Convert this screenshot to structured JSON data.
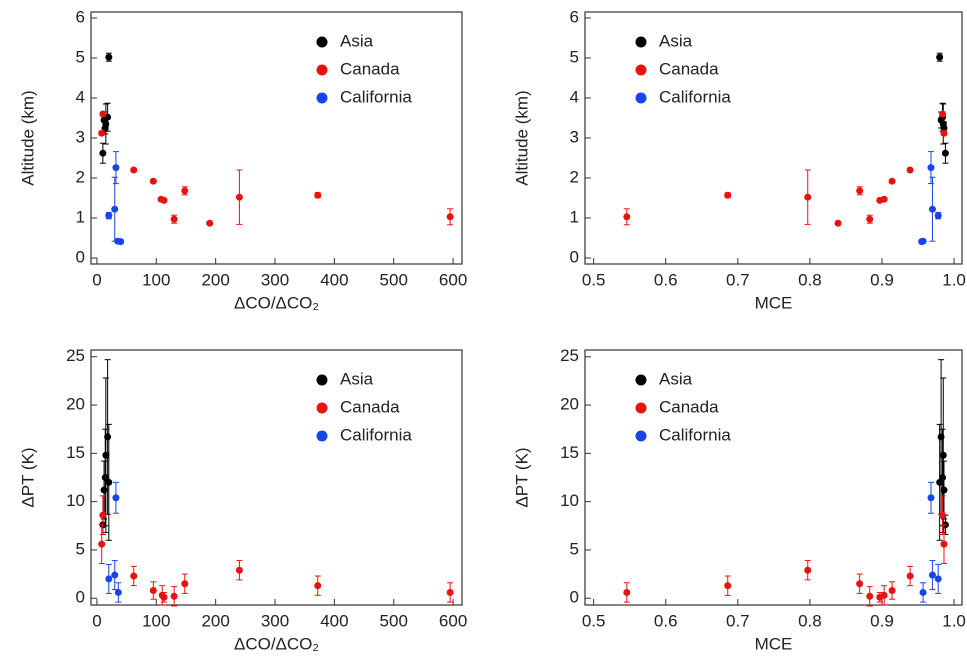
{
  "chart_data": [
    {
      "type": "scatter",
      "xlabel": "ΔCO/ΔCO₂",
      "ylabel": "Altitude (km)",
      "legend": "upper right",
      "xlim": [
        -10,
        615
      ],
      "ylim": [
        -0.15,
        6.15
      ],
      "xticks": [
        0,
        100,
        200,
        300,
        400,
        500,
        600
      ],
      "yticks": [
        0,
        1,
        2,
        3,
        4,
        5,
        6
      ],
      "series": [
        {
          "name": "Asia",
          "color": "#000000",
          "x": [
            20,
            10,
            12,
            15,
            18,
            14
          ],
          "values": [
            5.02,
            2.62,
            3.45,
            3.35,
            3.52,
            3.25
          ],
          "errors": [
            0.1,
            0.25,
            0.2,
            0.5,
            0.35,
            0.15
          ]
        },
        {
          "name": "Canada",
          "color": "#e8130f",
          "x": [
            10,
            8,
            62,
            95,
            108,
            113,
            130,
            148,
            190,
            240,
            372,
            595
          ],
          "values": [
            3.6,
            3.12,
            2.2,
            1.92,
            1.47,
            1.44,
            0.97,
            1.68,
            0.87,
            1.52,
            1.57,
            1.03
          ],
          "errors": [
            0.05,
            0.05,
            0.04,
            0.04,
            0.04,
            0.04,
            0.1,
            0.1,
            0.04,
            0.68,
            0.06,
            0.2
          ]
        },
        {
          "name": "California",
          "color": "#1746e6",
          "x": [
            20,
            30,
            32,
            35,
            40
          ],
          "values": [
            1.06,
            1.22,
            2.26,
            0.42,
            0.41
          ],
          "errors": [
            0.08,
            0.8,
            0.4,
            0.03,
            0.03
          ]
        }
      ]
    },
    {
      "type": "scatter",
      "xlabel": "MCE",
      "ylabel": "Altitude (km)",
      "legend": "upper left",
      "xlim": [
        0.488,
        1.011
      ],
      "ylim": [
        -0.15,
        6.15
      ],
      "xticks": [
        0.5,
        0.6,
        0.7,
        0.8,
        0.9,
        {
          "value": 1,
          "label": "1.0"
        }
      ],
      "yticks": [
        0,
        1,
        2,
        3,
        4,
        5,
        6
      ],
      "series": [
        {
          "name": "Asia",
          "color": "#000000",
          "x": [
            0.98,
            0.988,
            0.982,
            0.985,
            0.984,
            0.986
          ],
          "values": [
            5.02,
            2.62,
            3.45,
            3.35,
            3.52,
            3.25
          ],
          "errors": [
            0.1,
            0.25,
            0.2,
            0.5,
            0.35,
            0.15
          ]
        },
        {
          "name": "Canada",
          "color": "#e8130f",
          "x": [
            0.984,
            0.986,
            0.939,
            0.914,
            0.903,
            0.897,
            0.883,
            0.869,
            0.839,
            0.797,
            0.686,
            0.546
          ],
          "values": [
            3.6,
            3.12,
            2.2,
            1.92,
            1.47,
            1.44,
            0.97,
            1.68,
            0.87,
            1.52,
            1.57,
            1.03
          ],
          "errors": [
            0.05,
            0.05,
            0.04,
            0.04,
            0.04,
            0.04,
            0.1,
            0.1,
            0.04,
            0.68,
            0.06,
            0.2
          ]
        },
        {
          "name": "California",
          "color": "#1746e6",
          "x": [
            0.978,
            0.97,
            0.968,
            0.957,
            0.955
          ],
          "values": [
            1.06,
            1.22,
            2.26,
            0.42,
            0.41
          ],
          "errors": [
            0.08,
            0.8,
            0.4,
            0.03,
            0.03
          ]
        }
      ]
    },
    {
      "type": "scatter",
      "xlabel": "ΔCO/ΔCO₂",
      "ylabel": "ΔPT (K)",
      "legend": "upper right",
      "xlim": [
        -10,
        615
      ],
      "ylim": [
        -0.7,
        25.7
      ],
      "xticks": [
        0,
        100,
        200,
        300,
        400,
        500,
        600
      ],
      "yticks": [
        0,
        5,
        10,
        15,
        20,
        25
      ],
      "series": [
        {
          "name": "Asia",
          "color": "#000000",
          "x": [
            10,
            12,
            14,
            15,
            18,
            20
          ],
          "values": [
            7.6,
            11.2,
            12.5,
            14.8,
            16.7,
            12
          ],
          "errors": [
            1,
            3,
            5,
            8,
            8,
            6
          ]
        },
        {
          "name": "Canada",
          "color": "#e8130f",
          "x": [
            8,
            10,
            62,
            95,
            110,
            113,
            130,
            148,
            240,
            372,
            595
          ],
          "values": [
            5.6,
            8.6,
            2.3,
            0.8,
            0.3,
            0.1,
            0.2,
            1.5,
            2.9,
            1.3,
            0.6
          ],
          "errors": [
            2,
            2,
            1,
            0.9,
            1,
            0.5,
            1,
            1,
            1,
            1,
            1
          ]
        },
        {
          "name": "California",
          "color": "#1746e6",
          "x": [
            20,
            30,
            32,
            36
          ],
          "values": [
            2,
            2.4,
            10.4,
            0.6
          ],
          "errors": [
            1.5,
            1.5,
            1.6,
            1
          ]
        }
      ]
    },
    {
      "type": "scatter",
      "xlabel": "MCE",
      "ylabel": "ΔPT (K)",
      "legend": "upper left",
      "xlim": [
        0.488,
        1.011
      ],
      "ylim": [
        -0.7,
        25.7
      ],
      "xticks": [
        0.5,
        0.6,
        0.7,
        0.8,
        0.9,
        {
          "value": 1,
          "label": "1.0"
        }
      ],
      "yticks": [
        0,
        5,
        10,
        15,
        20,
        25
      ],
      "series": [
        {
          "name": "Asia",
          "color": "#000000",
          "x": [
            0.988,
            0.986,
            0.984,
            0.985,
            0.982,
            0.98
          ],
          "values": [
            7.6,
            11.2,
            12.5,
            14.8,
            16.7,
            12
          ],
          "errors": [
            1,
            3,
            5,
            8,
            8,
            6
          ]
        },
        {
          "name": "Canada",
          "color": "#e8130f",
          "x": [
            0.986,
            0.984,
            0.939,
            0.914,
            0.903,
            0.897,
            0.883,
            0.869,
            0.797,
            0.686,
            0.546
          ],
          "values": [
            5.6,
            8.6,
            2.3,
            0.8,
            0.3,
            0.1,
            0.2,
            1.5,
            2.9,
            1.3,
            0.6
          ],
          "errors": [
            2,
            2,
            1,
            0.9,
            1,
            0.5,
            1,
            1,
            1,
            1,
            1
          ]
        },
        {
          "name": "California",
          "color": "#1746e6",
          "x": [
            0.978,
            0.97,
            0.968,
            0.957
          ],
          "values": [
            2,
            2.4,
            10.4,
            0.6
          ],
          "errors": [
            1.5,
            1.5,
            1.6,
            1
          ]
        }
      ]
    }
  ]
}
